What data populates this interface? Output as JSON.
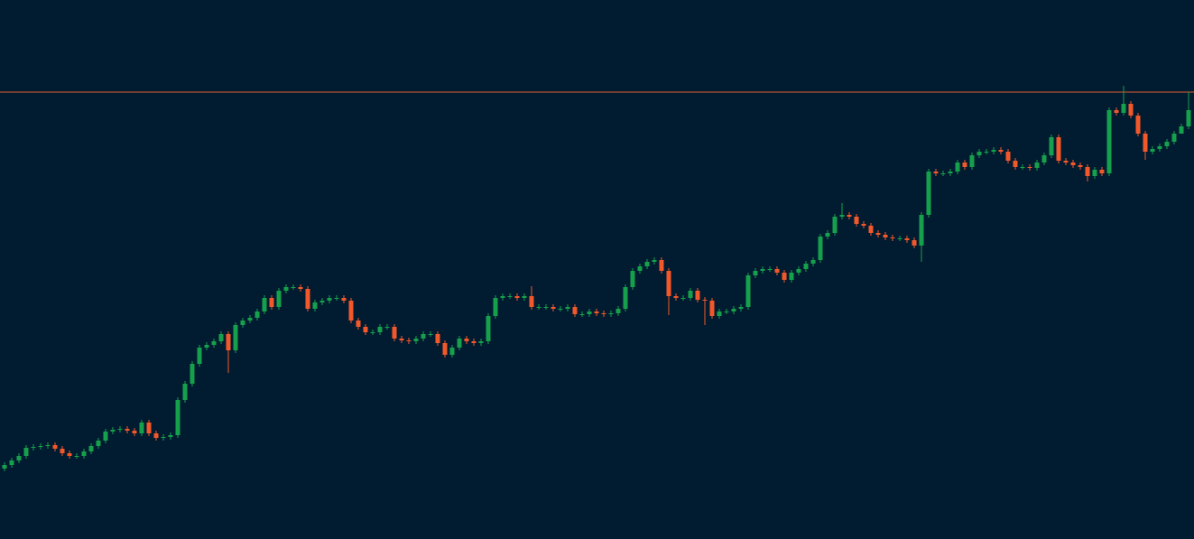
{
  "chart_data": {
    "type": "candlestick",
    "ylim": [
      0,
      597
    ],
    "up_color": "#16a04c",
    "down_color": "#f2582a",
    "hline": {
      "value": 495,
      "color": "#e0622f"
    },
    "open": [
      78,
      82,
      87,
      92,
      101,
      102,
      103,
      104,
      100,
      95,
      92,
      92,
      97,
      103,
      109,
      119,
      121,
      122,
      120,
      117,
      129,
      117,
      112,
      113,
      115,
      154,
      172,
      194,
      212,
      215,
      219,
      227,
      209,
      237,
      242,
      245,
      252,
      267,
      257,
      275,
      279,
      279,
      277,
      255,
      262,
      264,
      267,
      267,
      264,
      242,
      235,
      229,
      229,
      235,
      235,
      222,
      220,
      219,
      222,
      227,
      227,
      217,
      204,
      212,
      222,
      219,
      217,
      219,
      247,
      267,
      269,
      269,
      267,
      269,
      257,
      257,
      257,
      255,
      255,
      257,
      249,
      249,
      252,
      250,
      249,
      250,
      255,
      279,
      297,
      302,
      307,
      309,
      297,
      269,
      267,
      267,
      275,
      265,
      264,
      247,
      252,
      252,
      255,
      257,
      292,
      297,
      299,
      299,
      295,
      287,
      295,
      299,
      305,
      309,
      335,
      339,
      357,
      359,
      357,
      349,
      347,
      339,
      337,
      334,
      333,
      333,
      331,
      325,
      359,
      407,
      405,
      405,
      407,
      417,
      412,
      425,
      429,
      429,
      431,
      429,
      419,
      412,
      412,
      411,
      417,
      425,
      445,
      419,
      417,
      414,
      412,
      402,
      409,
      405,
      475,
      472,
      482,
      469,
      449,
      429,
      432,
      435,
      440,
      449,
      457
    ],
    "high": [
      85,
      90,
      95,
      104,
      105,
      106,
      107,
      107,
      103,
      98,
      95,
      100,
      106,
      112,
      122,
      124,
      125,
      125,
      123,
      132,
      132,
      120,
      116,
      118,
      157,
      175,
      197,
      215,
      218,
      222,
      230,
      230,
      240,
      245,
      248,
      255,
      270,
      270,
      278,
      282,
      282,
      282,
      280,
      265,
      267,
      270,
      270,
      270,
      267,
      245,
      238,
      232,
      238,
      238,
      238,
      225,
      223,
      225,
      230,
      230,
      230,
      220,
      215,
      225,
      225,
      222,
      222,
      250,
      270,
      272,
      272,
      272,
      272,
      280,
      260,
      260,
      260,
      258,
      260,
      260,
      252,
      255,
      255,
      253,
      253,
      258,
      282,
      300,
      305,
      310,
      312,
      312,
      300,
      272,
      270,
      278,
      278,
      268,
      267,
      255,
      255,
      258,
      260,
      295,
      300,
      302,
      302,
      302,
      298,
      298,
      302,
      308,
      312,
      338,
      342,
      360,
      372,
      362,
      360,
      352,
      350,
      342,
      340,
      337,
      336,
      336,
      334,
      362,
      410,
      410,
      408,
      410,
      420,
      420,
      428,
      432,
      432,
      434,
      434,
      432,
      422,
      415,
      415,
      420,
      428,
      448,
      448,
      422,
      420,
      417,
      415,
      412,
      412,
      478,
      478,
      502,
      485,
      472,
      452,
      435,
      438,
      443,
      452,
      460,
      495
    ],
    "low": [
      75,
      79,
      84,
      89,
      98,
      99,
      100,
      97,
      92,
      89,
      89,
      89,
      94,
      100,
      106,
      116,
      118,
      117,
      114,
      114,
      114,
      109,
      109,
      110,
      112,
      151,
      169,
      191,
      209,
      212,
      216,
      184,
      206,
      234,
      239,
      242,
      249,
      254,
      254,
      272,
      276,
      274,
      252,
      252,
      259,
      261,
      264,
      261,
      239,
      232,
      226,
      226,
      226,
      232,
      219,
      217,
      216,
      216,
      219,
      224,
      214,
      201,
      201,
      209,
      216,
      214,
      214,
      216,
      244,
      264,
      266,
      264,
      264,
      254,
      254,
      254,
      252,
      252,
      252,
      246,
      246,
      246,
      247,
      246,
      246,
      247,
      252,
      276,
      294,
      299,
      304,
      294,
      248,
      264,
      264,
      264,
      262,
      237,
      244,
      244,
      249,
      249,
      252,
      254,
      289,
      294,
      296,
      292,
      284,
      284,
      292,
      296,
      302,
      306,
      332,
      336,
      354,
      354,
      346,
      344,
      336,
      334,
      331,
      330,
      330,
      328,
      322,
      307,
      356,
      402,
      402,
      402,
      404,
      409,
      409,
      422,
      426,
      426,
      426,
      416,
      409,
      409,
      408,
      408,
      414,
      422,
      416,
      414,
      411,
      409,
      396,
      399,
      402,
      402,
      469,
      469,
      466,
      446,
      420,
      426,
      429,
      432,
      437,
      454,
      454
    ],
    "close": [
      82,
      87,
      92,
      101,
      102,
      103,
      104,
      100,
      95,
      92,
      92,
      97,
      103,
      109,
      119,
      121,
      122,
      120,
      117,
      129,
      117,
      112,
      113,
      115,
      154,
      172,
      194,
      212,
      215,
      219,
      227,
      209,
      237,
      242,
      245,
      252,
      267,
      257,
      275,
      279,
      279,
      277,
      255,
      262,
      264,
      267,
      267,
      264,
      242,
      235,
      229,
      229,
      235,
      235,
      222,
      220,
      219,
      222,
      227,
      227,
      217,
      204,
      212,
      222,
      219,
      217,
      219,
      247,
      267,
      269,
      269,
      267,
      269,
      257,
      257,
      257,
      255,
      255,
      257,
      249,
      249,
      252,
      250,
      249,
      250,
      255,
      279,
      297,
      302,
      307,
      309,
      297,
      269,
      267,
      267,
      275,
      265,
      264,
      247,
      252,
      252,
      255,
      257,
      292,
      297,
      299,
      299,
      295,
      287,
      295,
      299,
      305,
      309,
      335,
      339,
      357,
      359,
      357,
      349,
      347,
      339,
      337,
      334,
      333,
      333,
      331,
      325,
      359,
      407,
      405,
      405,
      407,
      417,
      412,
      425,
      429,
      429,
      431,
      429,
      419,
      412,
      412,
      411,
      417,
      425,
      445,
      419,
      417,
      414,
      412,
      402,
      409,
      405,
      475,
      472,
      482,
      469,
      449,
      429,
      432,
      435,
      440,
      449,
      457,
      475
    ]
  }
}
